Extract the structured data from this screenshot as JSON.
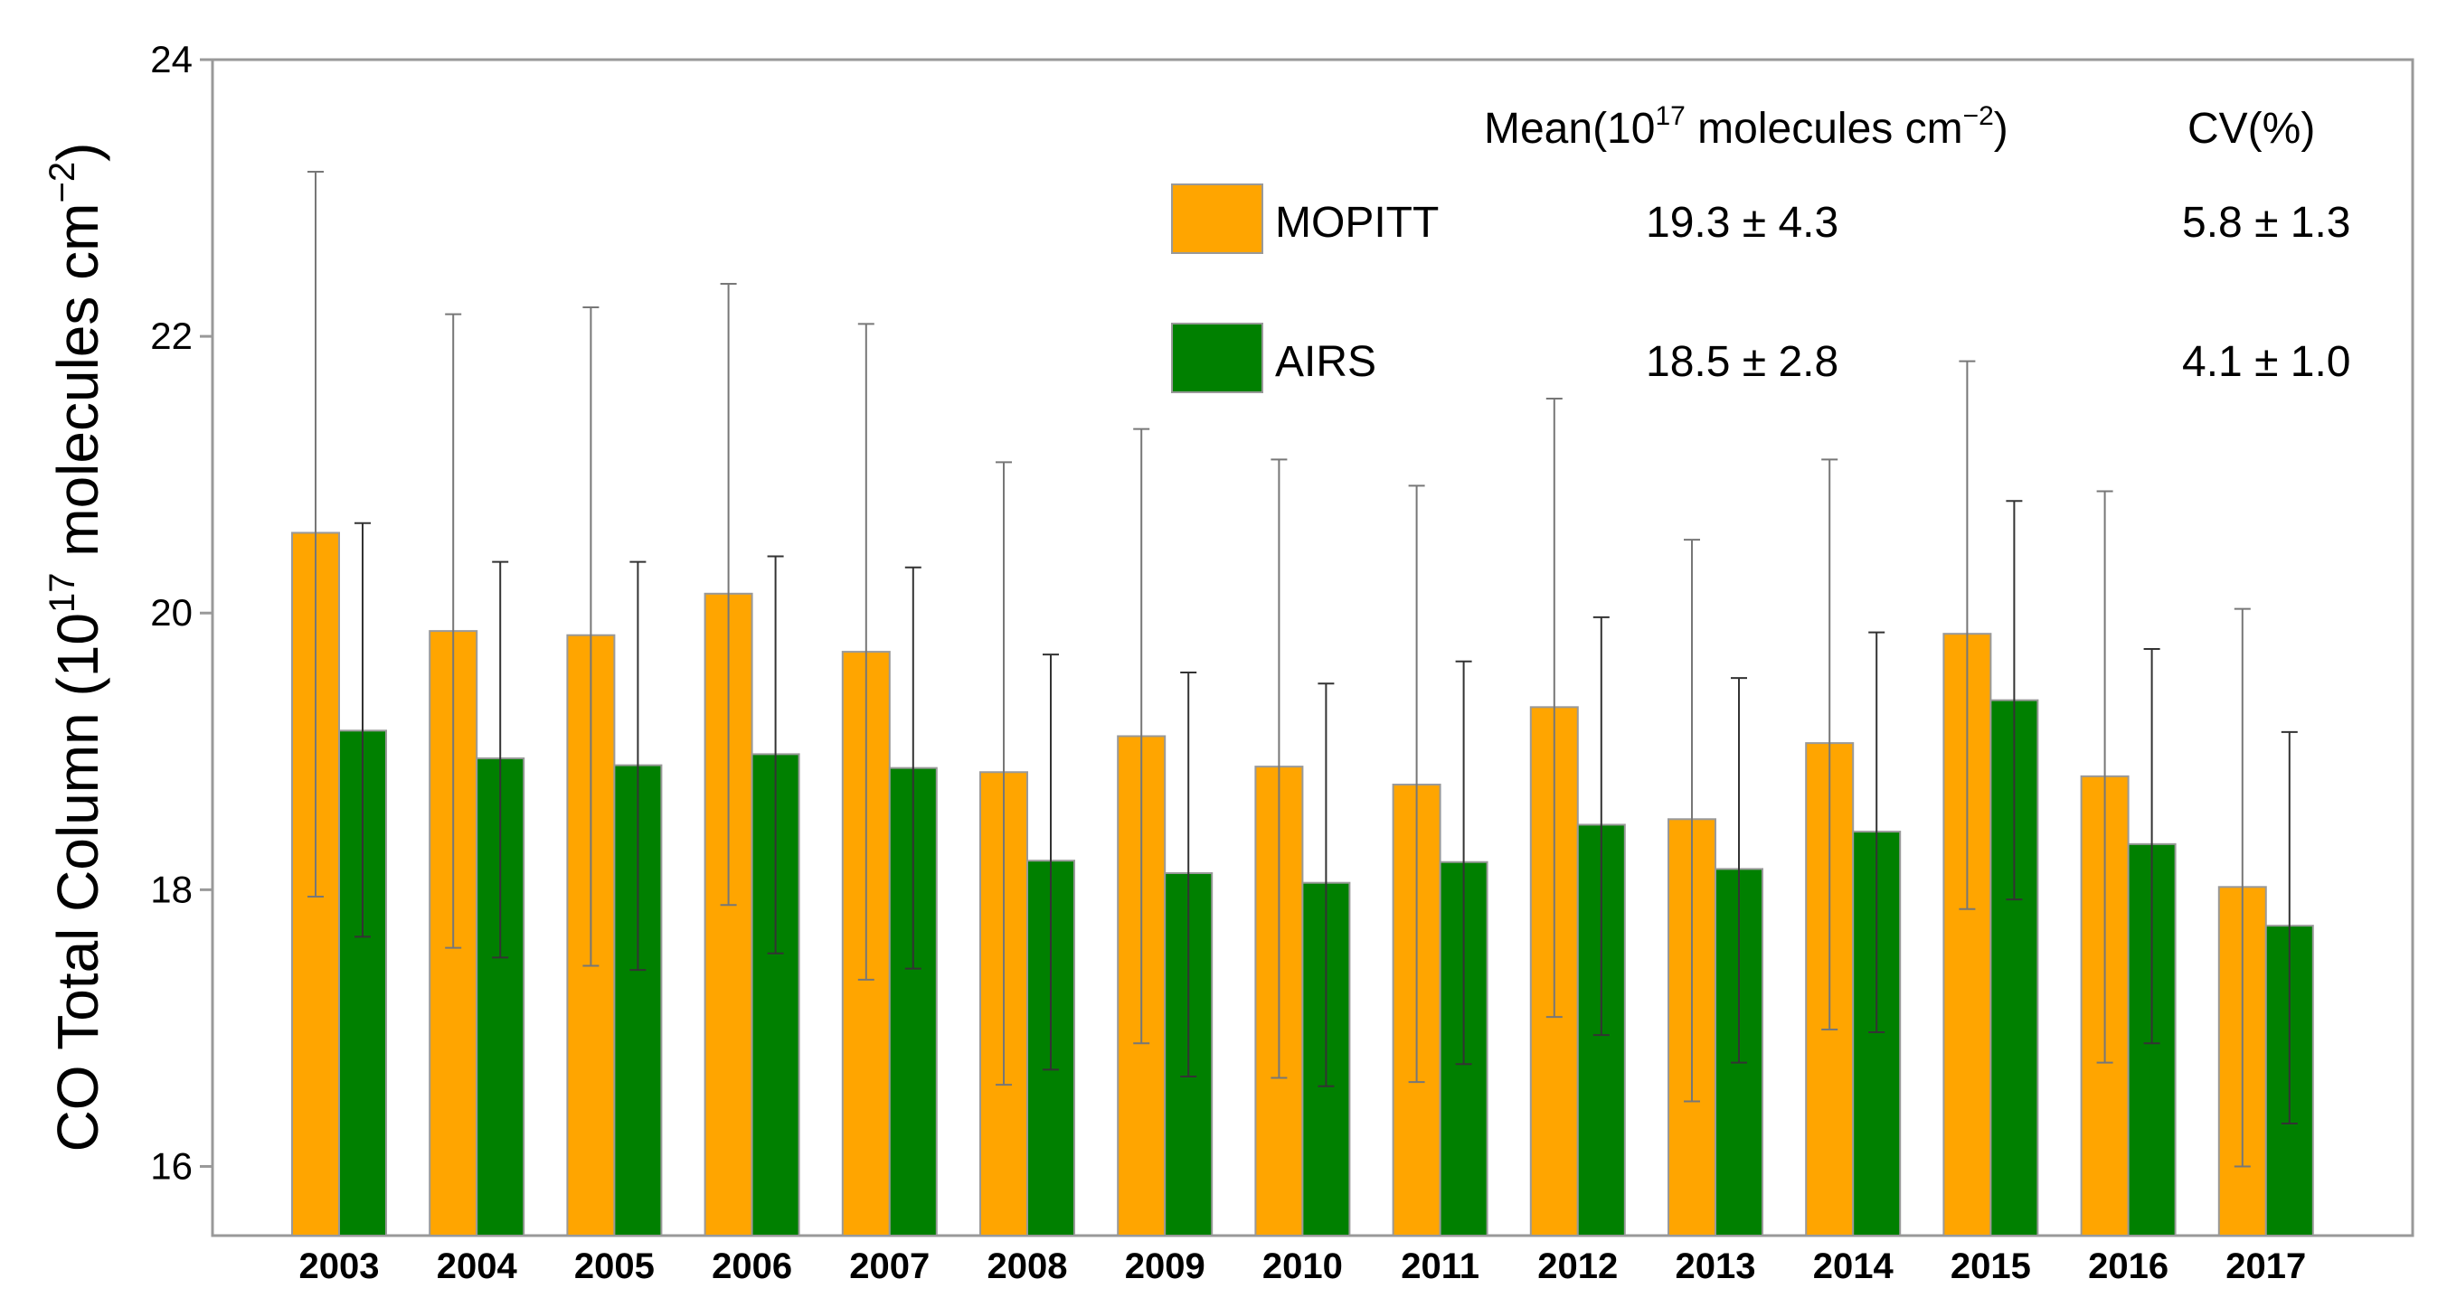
{
  "chart_data": {
    "type": "bar",
    "ylabel_prefix": "CO Total Column (10",
    "ylabel_exp": "17",
    "ylabel_units": " molecules cm",
    "ylabel_units_exp": "−2",
    "ylabel_close": ")",
    "xlabel": "",
    "ylim": [
      15.5,
      24
    ],
    "yticks": [
      16,
      18,
      20,
      22,
      24
    ],
    "categories": [
      "2003",
      "2004",
      "2005",
      "2006",
      "2007",
      "2008",
      "2009",
      "2010",
      "2011",
      "2012",
      "2013",
      "2014",
      "2015",
      "2016",
      "2017"
    ],
    "series": [
      {
        "name": "MOPITT",
        "color": "#FFA500",
        "values": [
          20.58,
          19.87,
          19.84,
          20.14,
          19.72,
          18.85,
          19.11,
          18.89,
          18.76,
          19.32,
          18.51,
          19.06,
          19.85,
          18.82,
          18.02
        ],
        "err_upper": [
          23.19,
          22.16,
          22.21,
          22.38,
          22.09,
          21.09,
          21.33,
          21.11,
          20.92,
          21.55,
          20.53,
          21.11,
          21.82,
          20.88,
          20.03
        ],
        "err_lower": [
          17.95,
          17.58,
          17.45,
          17.89,
          17.35,
          16.59,
          16.89,
          16.64,
          16.61,
          17.08,
          16.47,
          16.99,
          17.86,
          16.75,
          16.0
        ]
      },
      {
        "name": "AIRS",
        "color": "#008000",
        "values": [
          19.15,
          18.95,
          18.9,
          18.98,
          18.88,
          18.21,
          18.12,
          18.05,
          18.2,
          18.47,
          18.15,
          18.42,
          19.37,
          18.33,
          17.74
        ],
        "err_upper": [
          20.65,
          20.37,
          20.37,
          20.41,
          20.33,
          19.7,
          19.57,
          19.49,
          19.65,
          19.97,
          19.53,
          19.86,
          20.81,
          19.74,
          19.14
        ],
        "err_lower": [
          17.66,
          17.51,
          17.42,
          17.54,
          17.43,
          16.7,
          16.65,
          16.58,
          16.74,
          16.95,
          16.75,
          16.97,
          17.93,
          16.89,
          16.31
        ]
      }
    ],
    "legend": {
      "position": "top-right",
      "header_mean_prefix": "Mean(10",
      "header_mean_exp": "17",
      "header_mean_suffix": " molecules cm",
      "header_mean_suffix_exp": "−2",
      "header_mean_close": ")",
      "header_cv": "CV(%)",
      "rows": [
        {
          "name": "MOPITT",
          "mean": "19.3 ± 4.3",
          "cv": "5.8 ± 1.3"
        },
        {
          "name": "AIRS",
          "mean": "18.5 ± 2.8",
          "cv": "4.1 ± 1.0"
        }
      ]
    }
  }
}
